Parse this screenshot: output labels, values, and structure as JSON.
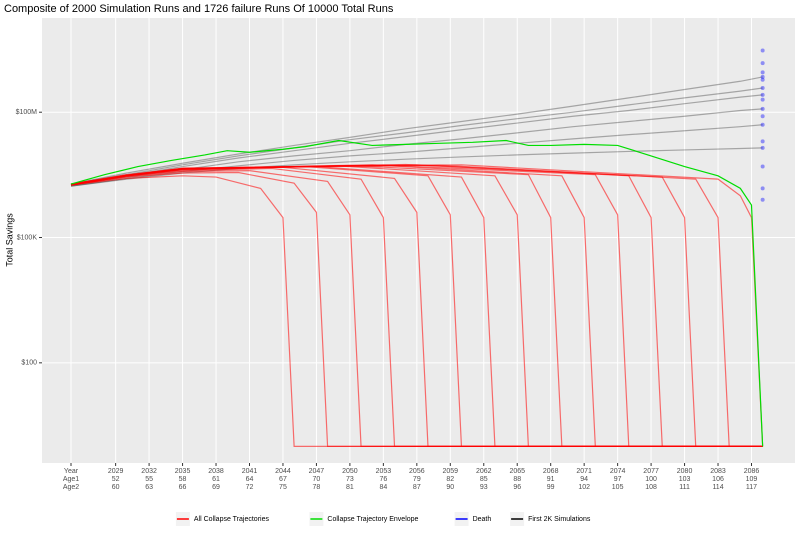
{
  "chart_data": {
    "type": "line",
    "title": "Composite of 2000 Simulation Runs and 1726 failure Runs Of 10000 Total Runs",
    "y_label": "Total Savings",
    "log_y": true,
    "grid": true,
    "legend": "bottom",
    "xlim": [
      2022.4,
      2089.9
    ],
    "ylim": [
      0.4,
      18000000000
    ],
    "yticks": [
      {
        "value": 100,
        "label": "$100"
      },
      {
        "value": 100000,
        "label": "$100K"
      },
      {
        "value": 100000000,
        "label": "$100M"
      }
    ],
    "xticks": [
      {
        "value": 2025,
        "label": "Year"
      },
      2029,
      2032,
      2035,
      2038,
      2041,
      2044,
      2047,
      2050,
      2053,
      2056,
      2059,
      2062,
      2065,
      2068,
      2071,
      2074,
      2077,
      2080,
      2083,
      2086
    ],
    "x_age1": [
      "Age1",
      "52",
      "55",
      "58",
      "61",
      "64",
      "67",
      "70",
      "73",
      "76",
      "79",
      "82",
      "85",
      "88",
      "91",
      "94",
      "97",
      "100",
      "103",
      "106",
      "109"
    ],
    "x_age2": [
      "Age2",
      "60",
      "63",
      "66",
      "69",
      "72",
      "75",
      "78",
      "81",
      "84",
      "87",
      "90",
      "93",
      "96",
      "99",
      "102",
      "105",
      "108",
      "111",
      "114",
      "117"
    ],
    "series": [
      {
        "name": "All Collapse Trajectories",
        "color": "#ff0000",
        "opacity": 0.55,
        "lines": [
          {
            "x": [
              2025,
              2030,
              2035,
              2038,
              2042,
              2044,
              2045,
              2087
            ],
            "values": [
              1800000,
              2600000,
              3000000,
              2800000,
              1500000,
              300000,
              1,
              1
            ]
          },
          {
            "x": [
              2025,
              2030,
              2035,
              2040,
              2045,
              2047,
              2048,
              2087
            ],
            "values": [
              1800000,
              2800000,
              3500000,
              3600000,
              2000000,
              400000,
              1,
              1
            ]
          },
          {
            "x": [
              2025,
              2030,
              2035,
              2041,
              2048,
              2050,
              2051,
              2087
            ],
            "values": [
              1800000,
              2900000,
              3800000,
              4000000,
              2200000,
              350000,
              1,
              1
            ]
          },
          {
            "x": [
              2025,
              2030,
              2035,
              2043,
              2051,
              2053,
              2054,
              2087
            ],
            "values": [
              1800000,
              3000000,
              4000000,
              4500000,
              2500000,
              300000,
              1,
              1
            ]
          },
          {
            "x": [
              2025,
              2030,
              2035,
              2044,
              2054,
              2056,
              2057,
              2087
            ],
            "values": [
              1900000,
              3000000,
              4200000,
              4800000,
              2600000,
              400000,
              1,
              1
            ]
          },
          {
            "x": [
              2025,
              2030,
              2035,
              2046,
              2057,
              2059,
              2060,
              2087
            ],
            "values": [
              1800000,
              3100000,
              4200000,
              5000000,
              3000000,
              350000,
              1,
              1
            ]
          },
          {
            "x": [
              2025,
              2030,
              2035,
              2047,
              2060,
              2062,
              2063,
              2087
            ],
            "values": [
              1800000,
              3000000,
              4300000,
              5000000,
              2800000,
              300000,
              1,
              1
            ]
          },
          {
            "x": [
              2025,
              2030,
              2035,
              2049,
              2063,
              2065,
              2066,
              2087
            ],
            "values": [
              1900000,
              3100000,
              4400000,
              5200000,
              3000000,
              350000,
              1,
              1
            ]
          },
          {
            "x": [
              2025,
              2030,
              2035,
              2050,
              2066,
              2068,
              2069,
              2087
            ],
            "values": [
              1800000,
              3000000,
              4400000,
              5300000,
              3200000,
              300000,
              1,
              1
            ]
          },
          {
            "x": [
              2025,
              2030,
              2035,
              2052,
              2069,
              2071,
              2072,
              2087
            ],
            "values": [
              1800000,
              3100000,
              4500000,
              5500000,
              3000000,
              300000,
              1,
              1
            ]
          },
          {
            "x": [
              2025,
              2030,
              2035,
              2053,
              2072,
              2074,
              2075,
              2087
            ],
            "values": [
              1900000,
              3200000,
              4500000,
              5400000,
              3200000,
              350000,
              1,
              1
            ]
          },
          {
            "x": [
              2025,
              2030,
              2035,
              2055,
              2075,
              2077,
              2078,
              2087
            ],
            "values": [
              1800000,
              3100000,
              4400000,
              5600000,
              3000000,
              300000,
              1,
              1
            ]
          },
          {
            "x": [
              2025,
              2030,
              2035,
              2056,
              2078,
              2080,
              2081,
              2087
            ],
            "values": [
              1800000,
              3000000,
              4500000,
              5500000,
              2800000,
              300000,
              1,
              1
            ]
          },
          {
            "x": [
              2025,
              2030,
              2035,
              2058,
              2081,
              2083,
              2084,
              2087
            ],
            "values": [
              1900000,
              3100000,
              4600000,
              5400000,
              2500000,
              300000,
              1,
              1
            ]
          },
          {
            "x": [
              2025,
              2030,
              2035,
              2060,
              2083,
              2085,
              2086,
              2087
            ],
            "values": [
              1800000,
              3000000,
              4500000,
              5500000,
              2500000,
              1000000,
              300000,
              1
            ]
          }
        ]
      },
      {
        "name": "Collapse Trajectory Envelope",
        "color": "#00dd00",
        "opacity": 1,
        "lines": [
          {
            "x": [
              2025,
              2028,
              2031,
              2034,
              2037,
              2039,
              2041,
              2044,
              2046,
              2049,
              2052,
              2055,
              2058,
              2061,
              2064,
              2066,
              2068,
              2071,
              2074,
              2077,
              2080,
              2083,
              2085,
              2086,
              2087
            ],
            "values": [
              1900000,
              3200000,
              5000000,
              7000000,
              9500000,
              12000000,
              11000000,
              13000000,
              15000000,
              21000000,
              16000000,
              17000000,
              18000000,
              19000000,
              21000000,
              16000000,
              16000000,
              17000000,
              16000000,
              9000000,
              5000000,
              3000000,
              1500000,
              600000,
              1
            ]
          }
        ]
      },
      {
        "name": "Death",
        "color": "#0000ff",
        "opacity": 0.4,
        "x": [
          2087,
          2087,
          2087,
          2087,
          2087,
          2087,
          2087,
          2087,
          2087,
          2087,
          2087,
          2087,
          2087,
          2087,
          2087,
          2087
        ],
        "values": [
          700000000,
          260000000,
          120000000,
          50000000,
          380000000,
          14000000,
          3000000000,
          1500000000,
          900000000,
          600000000,
          200000000,
          80000000,
          20000000,
          5000000,
          1500000,
          800000
        ]
      },
      {
        "name": "First 2K Simulations",
        "color": "#000000",
        "opacity": 0.3,
        "lines": [
          {
            "x": [
              2025,
              2030,
              2035,
              2040,
              2045,
              2050,
              2055,
              2060,
              2065,
              2070,
              2075,
              2080,
              2085,
              2087
            ],
            "values": [
              1900000,
              3500000,
              6000000,
              10000000,
              16000000,
              25000000,
              40000000,
              60000000,
              90000000,
              140000000,
              220000000,
              350000000,
              550000000,
              700000000
            ]
          },
          {
            "x": [
              2025,
              2030,
              2035,
              2040,
              2045,
              2050,
              2055,
              2060,
              2065,
              2070,
              2075,
              2080,
              2085,
              2087
            ],
            "values": [
              1800000,
              3000000,
              5000000,
              8000000,
              12000000,
              18000000,
              26000000,
              38000000,
              55000000,
              80000000,
              110000000,
              160000000,
              230000000,
              260000000
            ]
          },
          {
            "x": [
              2025,
              2030,
              2035,
              2040,
              2045,
              2050,
              2055,
              2060,
              2065,
              2070,
              2075,
              2080,
              2085,
              2087
            ],
            "values": [
              1800000,
              2800000,
              4200000,
              6500000,
              9000000,
              12000000,
              17000000,
              23000000,
              32000000,
              45000000,
              60000000,
              80000000,
              110000000,
              120000000
            ]
          },
          {
            "x": [
              2025,
              2030,
              2035,
              2040,
              2045,
              2050,
              2055,
              2060,
              2065,
              2070,
              2075,
              2080,
              2085,
              2087
            ],
            "values": [
              1700000,
              2600000,
              3800000,
              5200000,
              7000000,
              9000000,
              11000000,
              14000000,
              18000000,
              23000000,
              29000000,
              36000000,
              45000000,
              50000000
            ]
          },
          {
            "x": [
              2025,
              2030,
              2035,
              2040,
              2045,
              2050,
              2055,
              2060,
              2065,
              2070,
              2075,
              2080,
              2085,
              2087
            ],
            "values": [
              1900000,
              3200000,
              5500000,
              9000000,
              14000000,
              22000000,
              32000000,
              48000000,
              70000000,
              100000000,
              150000000,
              220000000,
              320000000,
              380000000
            ]
          },
          {
            "x": [
              2025,
              2030,
              2035,
              2040,
              2045,
              2050,
              2055,
              2060,
              2065,
              2070,
              2075,
              2080,
              2085,
              2087
            ],
            "values": [
              1700000,
              2500000,
              3500000,
              4500000,
              5500000,
              6500000,
              7500000,
              8500000,
              9500000,
              10500000,
              11500000,
              12500000,
              13500000,
              14000000
            ]
          }
        ]
      }
    ]
  }
}
